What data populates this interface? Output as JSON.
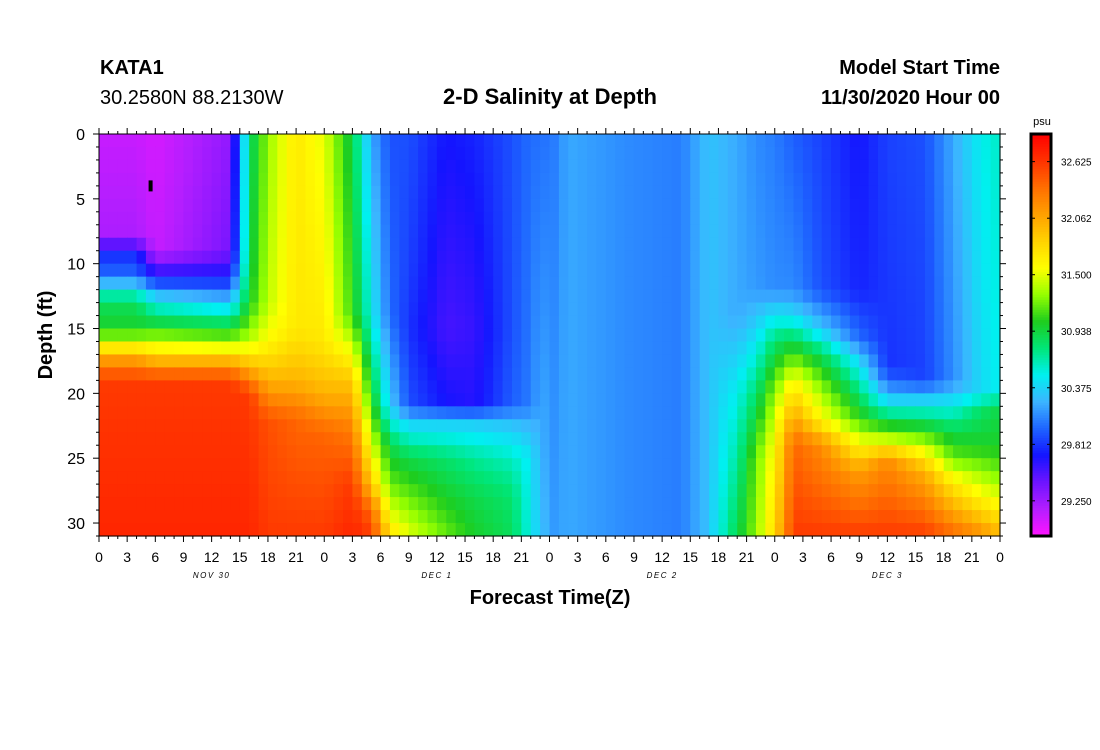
{
  "header": {
    "station": "KATA1",
    "coords": "30.2580N 88.2130W",
    "title": "2-D Salinity at Depth",
    "start_label": "Model Start Time",
    "start_time": "11/30/2020 Hour 00"
  },
  "chart_data": {
    "type": "heatmap",
    "title": "2-D Salinity at Depth",
    "xlabel": "Forecast Time(Z)",
    "ylabel": "Depth (ft)",
    "x_unit": "hours since 11/30/2020 00Z",
    "xlim": [
      0,
      96
    ],
    "ylim": [
      0,
      31
    ],
    "x_ticks": [
      0,
      3,
      6,
      9,
      12,
      15,
      18,
      21,
      24,
      27,
      30,
      33,
      36,
      39,
      42,
      45,
      48,
      51,
      54,
      57,
      60,
      63,
      66,
      69,
      72,
      75,
      78,
      81,
      84,
      87,
      90,
      93,
      96
    ],
    "x_tick_labels": [
      "0",
      "3",
      "6",
      "9",
      "12",
      "15",
      "18",
      "21",
      "0",
      "3",
      "6",
      "9",
      "12",
      "15",
      "18",
      "21",
      "0",
      "3",
      "6",
      "9",
      "12",
      "15",
      "18",
      "21",
      "0",
      "3",
      "6",
      "9",
      "12",
      "15",
      "18",
      "21",
      "0"
    ],
    "day_labels": [
      {
        "text": "NOV 30",
        "hour": 12
      },
      {
        "text": "DEC 1",
        "hour": 36
      },
      {
        "text": "DEC 2",
        "hour": 60
      },
      {
        "text": "DEC 3",
        "hour": 84
      }
    ],
    "y_ticks": [
      0,
      5,
      10,
      15,
      20,
      25,
      30
    ],
    "colorbar": {
      "unit": "psu",
      "min": 28.9,
      "max": 32.9,
      "tick_values": [
        29.25,
        29.812,
        30.375,
        30.938,
        31.5,
        32.062,
        32.625
      ],
      "tick_labels": [
        "29.250",
        "29.812",
        "30.375",
        "30.938",
        "31.500",
        "32.062",
        "32.625"
      ],
      "colors": [
        "#ff14ff",
        "#b41eff",
        "#6e14ff",
        "#1414ff",
        "#1e64ff",
        "#3cb4ff",
        "#00f0f0",
        "#00e678",
        "#1ecd1e",
        "#96ff00",
        "#ffff00",
        "#ffd200",
        "#ffa000",
        "#ff6e00",
        "#ff3200",
        "#ff0000"
      ]
    },
    "columns": [
      {
        "t": 0,
        "profile": [
          [
            0,
            29.1
          ],
          [
            8,
            29.2
          ],
          [
            9,
            29.75
          ],
          [
            11,
            30.0
          ],
          [
            12,
            30.5
          ],
          [
            13,
            30.85
          ],
          [
            15,
            31.0
          ],
          [
            16,
            31.4
          ],
          [
            17,
            32.0
          ],
          [
            19,
            32.6
          ],
          [
            31,
            32.7
          ]
        ]
      },
      {
        "t": 4,
        "profile": [
          [
            0,
            29.1
          ],
          [
            8,
            29.2
          ],
          [
            9,
            29.75
          ],
          [
            11,
            30.0
          ],
          [
            12,
            30.5
          ],
          [
            13,
            30.85
          ],
          [
            15,
            31.0
          ],
          [
            16,
            31.4
          ],
          [
            17,
            32.0
          ],
          [
            19,
            32.6
          ],
          [
            31,
            32.7
          ]
        ]
      },
      {
        "t": 6,
        "profile": [
          [
            0,
            29.05
          ],
          [
            9,
            29.1
          ],
          [
            11,
            29.7
          ],
          [
            13,
            30.5
          ],
          [
            14.5,
            30.9
          ],
          [
            16,
            31.4
          ],
          [
            17.5,
            32.0
          ],
          [
            19,
            32.6
          ],
          [
            31,
            32.7
          ]
        ]
      },
      {
        "t": 14,
        "profile": [
          [
            0,
            29.3
          ],
          [
            9,
            29.4
          ],
          [
            11,
            29.7
          ],
          [
            13,
            30.3
          ],
          [
            14.5,
            30.8
          ],
          [
            16,
            31.3
          ],
          [
            17.5,
            32.0
          ],
          [
            19,
            32.6
          ],
          [
            31,
            32.7
          ]
        ]
      },
      {
        "t": 16,
        "profile": [
          [
            0,
            30.8
          ],
          [
            10,
            30.9
          ],
          [
            13,
            31.0
          ],
          [
            16,
            31.4
          ],
          [
            18,
            32.0
          ],
          [
            20,
            32.6
          ],
          [
            31,
            32.7
          ]
        ]
      },
      {
        "t": 18,
        "profile": [
          [
            0,
            31.3
          ],
          [
            13,
            31.4
          ],
          [
            16,
            31.6
          ],
          [
            19,
            32.0
          ],
          [
            22,
            32.5
          ],
          [
            31,
            32.6
          ]
        ]
      },
      {
        "t": 21,
        "profile": [
          [
            0,
            31.7
          ],
          [
            15,
            31.7
          ],
          [
            19,
            32.0
          ],
          [
            22,
            32.4
          ],
          [
            31,
            32.6
          ]
        ]
      },
      {
        "t": 24,
        "profile": [
          [
            0,
            31.5
          ],
          [
            16,
            31.7
          ],
          [
            20,
            32.0
          ],
          [
            23,
            32.4
          ],
          [
            31,
            32.6
          ]
        ]
      },
      {
        "t": 27,
        "profile": [
          [
            0,
            30.9
          ],
          [
            14,
            31.1
          ],
          [
            19,
            31.9
          ],
          [
            23,
            32.3
          ],
          [
            27,
            32.6
          ],
          [
            31,
            32.7
          ]
        ]
      },
      {
        "t": 29,
        "profile": [
          [
            0,
            30.2
          ],
          [
            14,
            30.5
          ],
          [
            20,
            31.0
          ],
          [
            24,
            31.5
          ],
          [
            27,
            31.9
          ],
          [
            29,
            32.4
          ],
          [
            31,
            32.6
          ]
        ]
      },
      {
        "t": 31,
        "profile": [
          [
            0,
            29.9
          ],
          [
            14,
            30.0
          ],
          [
            21,
            30.35
          ],
          [
            24,
            30.9
          ],
          [
            27,
            31.2
          ],
          [
            30,
            31.6
          ],
          [
            31,
            31.8
          ]
        ]
      },
      {
        "t": 33,
        "profile": [
          [
            0,
            29.9
          ],
          [
            10,
            29.85
          ],
          [
            15,
            29.8
          ],
          [
            21,
            29.9
          ],
          [
            22,
            30.3
          ],
          [
            25,
            30.9
          ],
          [
            28,
            31.2
          ],
          [
            31,
            31.5
          ]
        ]
      },
      {
        "t": 37,
        "profile": [
          [
            0,
            29.7
          ],
          [
            10,
            29.6
          ],
          [
            15,
            29.55
          ],
          [
            21,
            29.7
          ],
          [
            22,
            30.3
          ],
          [
            25,
            30.8
          ],
          [
            28,
            31.0
          ],
          [
            31,
            31.2
          ]
        ]
      },
      {
        "t": 40,
        "profile": [
          [
            0,
            29.75
          ],
          [
            15,
            29.6
          ],
          [
            21,
            29.65
          ],
          [
            22,
            30.3
          ],
          [
            25,
            30.7
          ],
          [
            28,
            30.9
          ],
          [
            31,
            31.0
          ]
        ]
      },
      {
        "t": 44,
        "profile": [
          [
            0,
            29.9
          ],
          [
            15,
            29.9
          ],
          [
            21,
            29.95
          ],
          [
            22,
            30.25
          ],
          [
            25,
            30.6
          ],
          [
            28,
            30.8
          ],
          [
            31,
            30.85
          ]
        ]
      },
      {
        "t": 46,
        "profile": [
          [
            0,
            30.0
          ],
          [
            21,
            30.05
          ],
          [
            22,
            30.2
          ],
          [
            25,
            30.45
          ],
          [
            31,
            30.5
          ]
        ]
      },
      {
        "t": 47,
        "profile": [
          [
            0,
            30.0
          ],
          [
            31,
            30.3
          ]
        ]
      },
      {
        "t": 48.5,
        "profile": [
          [
            0,
            30.05
          ],
          [
            31,
            30.15
          ]
        ]
      },
      {
        "t": 50,
        "profile": [
          [
            0,
            30.2
          ],
          [
            31,
            30.2
          ]
        ]
      },
      {
        "t": 56,
        "profile": [
          [
            0,
            30.1
          ],
          [
            31,
            30.1
          ]
        ]
      },
      {
        "t": 62,
        "profile": [
          [
            0,
            30.05
          ],
          [
            31,
            30.05
          ]
        ]
      },
      {
        "t": 65,
        "profile": [
          [
            0,
            30.3
          ],
          [
            31,
            30.3
          ]
        ]
      },
      {
        "t": 68,
        "profile": [
          [
            0,
            30.2
          ],
          [
            14,
            30.2
          ],
          [
            20,
            30.5
          ],
          [
            31,
            30.9
          ]
        ]
      },
      {
        "t": 70,
        "profile": [
          [
            0,
            30.1
          ],
          [
            12,
            30.15
          ],
          [
            16,
            30.45
          ],
          [
            20,
            30.8
          ],
          [
            25,
            31.2
          ],
          [
            31,
            31.3
          ]
        ]
      },
      {
        "t": 72,
        "profile": [
          [
            0,
            30.05
          ],
          [
            12,
            30.1
          ],
          [
            16,
            30.8
          ],
          [
            20,
            31.3
          ],
          [
            24,
            31.6
          ],
          [
            31,
            31.8
          ]
        ]
      },
      {
        "t": 74,
        "profile": [
          [
            0,
            29.95
          ],
          [
            12,
            30.1
          ],
          [
            14,
            30.4
          ],
          [
            16,
            30.9
          ],
          [
            19,
            31.6
          ],
          [
            22,
            32.1
          ],
          [
            24,
            32.4
          ],
          [
            31,
            32.6
          ]
        ]
      },
      {
        "t": 77,
        "profile": [
          [
            0,
            29.85
          ],
          [
            12,
            29.9
          ],
          [
            15,
            30.3
          ],
          [
            17,
            30.85
          ],
          [
            19,
            31.2
          ],
          [
            22,
            31.6
          ],
          [
            24,
            32.2
          ],
          [
            31,
            32.6
          ]
        ]
      },
      {
        "t": 81,
        "profile": [
          [
            0,
            29.7
          ],
          [
            12,
            29.75
          ],
          [
            16,
            30.0
          ],
          [
            17,
            30.3
          ],
          [
            20,
            30.8
          ],
          [
            22,
            31.1
          ],
          [
            24,
            31.6
          ],
          [
            26,
            32.1
          ],
          [
            31,
            32.6
          ]
        ]
      },
      {
        "t": 84,
        "profile": [
          [
            0,
            29.85
          ],
          [
            18,
            29.8
          ],
          [
            20,
            30.2
          ],
          [
            22,
            30.85
          ],
          [
            24,
            31.6
          ],
          [
            25,
            32.2
          ],
          [
            31,
            32.6
          ]
        ]
      },
      {
        "t": 88,
        "profile": [
          [
            0,
            29.9
          ],
          [
            19,
            29.85
          ],
          [
            20,
            30.2
          ],
          [
            22,
            30.8
          ],
          [
            24,
            31.4
          ],
          [
            26,
            32.0
          ],
          [
            31,
            32.6
          ]
        ]
      },
      {
        "t": 91,
        "profile": [
          [
            0,
            30.2
          ],
          [
            19,
            30.1
          ],
          [
            21,
            30.5
          ],
          [
            23,
            30.9
          ],
          [
            25,
            31.2
          ],
          [
            27,
            31.7
          ],
          [
            31,
            32.4
          ]
        ]
      },
      {
        "t": 94,
        "profile": [
          [
            0,
            30.5
          ],
          [
            20,
            30.4
          ],
          [
            21,
            30.8
          ],
          [
            24,
            31.0
          ],
          [
            26,
            31.3
          ],
          [
            28,
            31.6
          ],
          [
            31,
            32.2
          ]
        ]
      },
      {
        "t": 96,
        "profile": [
          [
            0,
            30.6
          ],
          [
            20,
            30.5
          ],
          [
            21,
            30.9
          ],
          [
            24,
            31.0
          ],
          [
            26,
            31.2
          ],
          [
            28,
            31.5
          ],
          [
            31,
            32.0
          ]
        ]
      }
    ],
    "marker": {
      "hour": 5.5,
      "depth": 4
    }
  }
}
